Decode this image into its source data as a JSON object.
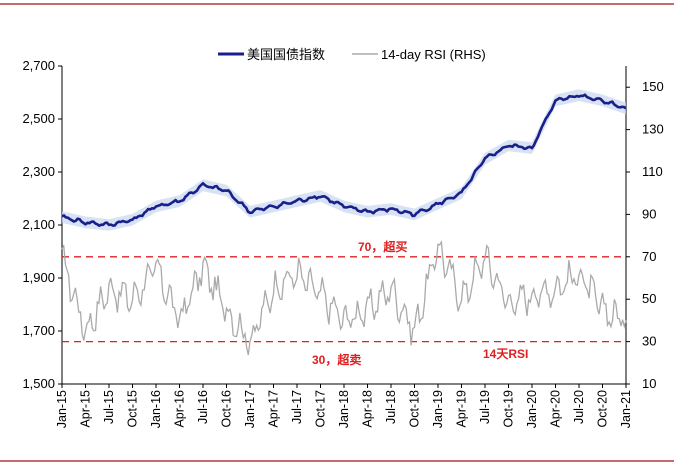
{
  "chart_data": {
    "type": "line",
    "title": "",
    "legend_position": "top-center",
    "left_axis": {
      "ylim": [
        1500,
        2700
      ],
      "ticks": [
        "1,500",
        "1,700",
        "1,900",
        "2,100",
        "2,300",
        "2,500",
        "2,700"
      ]
    },
    "right_axis": {
      "ylim": [
        10,
        160
      ],
      "ticks": [
        "10",
        "30",
        "50",
        "70",
        "90",
        "110",
        "130",
        "150"
      ]
    },
    "x_ticks": [
      "Jan-15",
      "Apr-15",
      "Jul-15",
      "Oct-15",
      "Jan-16",
      "Apr-16",
      "Jul-16",
      "Oct-16",
      "Jan-17",
      "Apr-17",
      "Jul-17",
      "Oct-17",
      "Jan-18",
      "Apr-18",
      "Jul-18",
      "Oct-18",
      "Jan-19",
      "Apr-19",
      "Jul-19",
      "Oct-19",
      "Jan-20",
      "Apr-20",
      "Jul-20",
      "Oct-20",
      "Jan-21"
    ],
    "series": [
      {
        "name": "美国国债指数",
        "axis": "left",
        "color": "#1a1f8a",
        "x": [
          "Jan-15",
          "Apr-15",
          "Jul-15",
          "Oct-15",
          "Jan-16",
          "Apr-16",
          "Jul-16",
          "Oct-16",
          "Jan-17",
          "Apr-17",
          "Jul-17",
          "Oct-17",
          "Jan-18",
          "Apr-18",
          "Jul-18",
          "Oct-18",
          "Jan-19",
          "Apr-19",
          "Jul-19",
          "Oct-19",
          "Jan-20",
          "Apr-20",
          "Jul-20",
          "Oct-20",
          "Jan-21"
        ],
        "values": [
          2130,
          2110,
          2100,
          2120,
          2170,
          2190,
          2250,
          2230,
          2150,
          2170,
          2190,
          2210,
          2170,
          2150,
          2160,
          2140,
          2180,
          2220,
          2350,
          2400,
          2390,
          2570,
          2590,
          2570,
          2540
        ]
      },
      {
        "name": "14-day RSI (RHS)",
        "axis": "right",
        "color": "#aaaaaa",
        "x": [
          "Jan-15",
          "Apr-15",
          "Jul-15",
          "Oct-15",
          "Jan-16",
          "Apr-16",
          "Jul-16",
          "Oct-16",
          "Jan-17",
          "Apr-17",
          "Jul-17",
          "Oct-17",
          "Jan-18",
          "Apr-18",
          "Jul-18",
          "Oct-18",
          "Jan-19",
          "Apr-19",
          "Jul-19",
          "Oct-19",
          "Jan-20",
          "Apr-20",
          "Jul-20",
          "Oct-20",
          "Jan-21"
        ],
        "values": [
          70,
          35,
          55,
          50,
          65,
          40,
          65,
          45,
          30,
          55,
          62,
          52,
          40,
          45,
          55,
          35,
          75,
          50,
          70,
          48,
          52,
          55,
          62,
          45,
          40
        ]
      }
    ],
    "reference_lines": [
      {
        "axis": "right",
        "value": 70,
        "label": "70，超买",
        "color": "#e02020"
      },
      {
        "axis": "right",
        "value": 30,
        "label": "30，超卖",
        "color": "#e02020"
      }
    ],
    "annotation": {
      "text": "14天RSI",
      "color": "#e02020"
    }
  }
}
